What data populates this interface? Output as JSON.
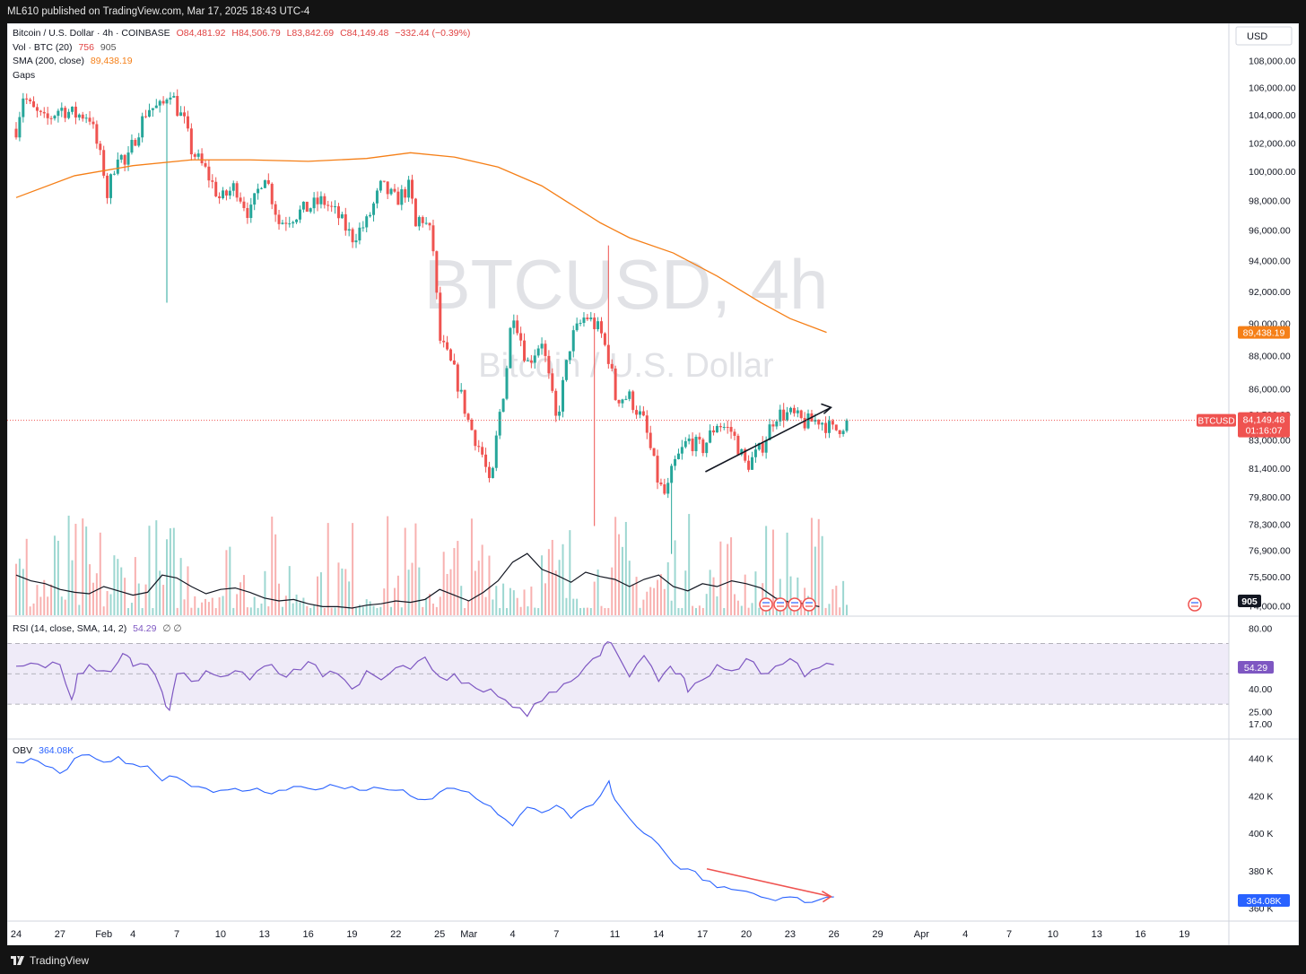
{
  "header": {
    "published": "ML610 published on TradingView.com, Mar 17, 2025 18:43 UTC-4"
  },
  "footer": {
    "brand": "TradingView"
  },
  "legend": {
    "title": "Bitcoin / U.S. Dollar · 4h · COINBASE",
    "o": "O84,481.92",
    "h": "H84,506.79",
    "l": "L83,842.69",
    "c": "C84,149.48",
    "chg": "−332.44 (−0.39%)",
    "vol_label": "Vol · BTC (20)",
    "vol_a": "756",
    "vol_b": "905",
    "sma_label": "SMA (200, close)",
    "sma_val": "89,438.19",
    "gaps": "Gaps",
    "rsi_label": "RSI (14, close, SMA, 14, 2)",
    "rsi_val": "54.29",
    "rsi_extra": "∅ ∅",
    "obv_label": "OBV",
    "obv_val": "364.08K"
  },
  "watermark": {
    "symbol": "BTCUSD, 4h",
    "name": "Bitcoin / U.S. Dollar"
  },
  "colors": {
    "up": "#26a69a",
    "down": "#ef5350",
    "sma": "#f57f17",
    "rsi": "#7e57c2",
    "obv": "#2962ff",
    "bg": "#131313"
  },
  "chart_data": [
    {
      "type": "candlestick",
      "title": "Bitcoin / U.S. Dollar · 4h · COINBASE",
      "currency": "USD",
      "price_ticks": [
        "108,000.00",
        "106,000.00",
        "104,000.00",
        "102,000.00",
        "100,000.00",
        "98,000.00",
        "96,000.00",
        "94,000.00",
        "92,000.00",
        "90,000.00",
        "88,000.00",
        "86,000.00",
        "84,500.00",
        "83,000.00",
        "81,400.00",
        "79,800.00",
        "78,300.00",
        "76,900.00",
        "75,500.00",
        "74,000.00"
      ],
      "y_range": [
        74000,
        108000
      ],
      "scale": "log",
      "anchor_path": {
        "x": [
          0,
          0.5,
          1,
          2,
          3,
          4,
          5,
          6,
          6.2,
          7,
          7.5,
          8,
          9,
          10,
          10.5,
          11,
          11.5,
          12,
          13,
          14,
          15,
          16,
          17,
          18,
          19,
          20,
          21,
          22,
          23,
          24,
          25,
          26,
          27,
          27.3,
          27.7,
          28,
          28.5,
          29,
          30,
          31,
          32,
          32.5,
          33,
          33.5,
          34,
          35,
          36,
          37,
          38,
          39,
          40,
          40.7,
          41,
          42,
          43,
          44,
          44.5,
          45,
          46,
          47,
          48,
          49,
          50,
          51,
          52,
          53,
          54,
          55,
          56,
          57
        ],
        "y": [
          103000,
          105500,
          104500,
          103500,
          104500,
          104000,
          104000,
          100000,
          98200,
          101500,
          100200,
          102000,
          104500,
          104500,
          106000,
          104500,
          103500,
          101500,
          100000,
          98000,
          99000,
          97000,
          100000,
          96500,
          97000,
          97500,
          98000,
          97000,
          95500,
          96500,
          99000,
          98000,
          99000,
          96000,
          97000,
          96500,
          95500,
          89000,
          87000,
          84000,
          82000,
          80000,
          84000,
          86500,
          91000,
          87500,
          89000,
          84000,
          89000,
          90500,
          89500,
          87500,
          85500,
          85500,
          84000,
          80500,
          79800,
          81500,
          83000,
          82500,
          84000,
          83500,
          81500,
          82500,
          84500,
          84500,
          84000,
          84200,
          83500,
          84150
        ]
      },
      "extremes": {
        "high_x": 6.6,
        "high": 106800,
        "low_x": 44.8,
        "low": 76700,
        "pre_low_x": 39.5,
        "pre_low": 78200,
        "feb3_low_x": 10.4,
        "feb3_low": 91300,
        "mar2_high_x": 40.6,
        "mar2_high": 95000
      },
      "last_price": "84,149.48",
      "last_label": "BTCUSD",
      "countdown": "01:16:07",
      "sma_200": {
        "x": [
          0,
          4,
          8,
          12,
          16,
          20,
          24,
          27,
          30,
          33,
          36,
          40,
          42,
          45,
          48,
          51,
          53,
          55.5
        ],
        "y": [
          98200,
          99700,
          100400,
          100800,
          100800,
          100700,
          100900,
          101300,
          101000,
          100300,
          99000,
          96500,
          95500,
          94500,
          93000,
          91300,
          90300,
          89438
        ]
      },
      "sma_value": "89,438.19",
      "trendline": {
        "start": [
          47.2,
          81200
        ],
        "end": [
          55.8,
          84900
        ]
      }
    },
    {
      "type": "bar",
      "name": "Vol · BTC (20)",
      "volume_ticks": [
        "905"
      ],
      "current_volume": "905",
      "volume_ma": {
        "x": [
          0,
          1,
          2,
          3,
          4,
          5,
          6,
          7,
          8,
          9,
          10,
          11,
          12,
          13,
          14,
          15,
          16,
          17,
          18,
          19,
          20,
          21,
          22,
          23,
          24,
          25,
          26,
          27,
          28,
          29,
          30,
          31,
          32,
          33,
          34,
          35,
          36,
          37,
          38,
          39,
          40,
          41,
          42,
          43,
          44,
          45,
          46,
          47,
          48,
          49,
          50,
          51,
          52,
          53,
          54,
          55
        ],
        "y": [
          0.28,
          0.24,
          0.22,
          0.18,
          0.16,
          0.15,
          0.2,
          0.17,
          0.14,
          0.16,
          0.28,
          0.26,
          0.2,
          0.15,
          0.18,
          0.19,
          0.16,
          0.12,
          0.1,
          0.11,
          0.08,
          0.06,
          0.06,
          0.05,
          0.07,
          0.08,
          0.1,
          0.09,
          0.11,
          0.18,
          0.14,
          0.1,
          0.16,
          0.24,
          0.37,
          0.43,
          0.32,
          0.28,
          0.23,
          0.3,
          0.27,
          0.25,
          0.2,
          0.25,
          0.28,
          0.2,
          0.17,
          0.22,
          0.2,
          0.24,
          0.22,
          0.19,
          0.12,
          0.09,
          0.08,
          0.06
        ]
      }
    },
    {
      "type": "line",
      "name": "RSI (14, close, SMA, 14, 2)",
      "y_ticks": [
        "80.00",
        "40.00",
        "25.00",
        "17.00"
      ],
      "y_range": [
        10,
        85
      ],
      "bands": [
        70,
        30
      ],
      "mid": 50,
      "value": "54.29",
      "x": [
        0,
        1,
        2,
        3,
        3.8,
        4.2,
        5,
        6,
        7,
        7.6,
        8,
        9,
        10,
        10.5,
        11,
        12,
        13,
        14,
        15,
        16,
        17,
        18,
        19,
        20,
        21,
        22,
        23,
        24,
        25,
        26,
        27,
        28,
        29,
        30,
        31,
        32,
        33,
        34,
        35,
        36,
        37,
        38,
        39,
        40,
        40.5,
        41,
        42,
        43,
        44,
        44.8,
        45.5,
        46,
        47,
        48,
        49,
        50,
        51,
        52,
        53,
        54,
        55,
        56
      ],
      "y": [
        55,
        57,
        54,
        56,
        33,
        50,
        56,
        52,
        58,
        62,
        55,
        56,
        38,
        26,
        50,
        45,
        52,
        48,
        52,
        46,
        55,
        50,
        53,
        58,
        48,
        50,
        40,
        52,
        46,
        54,
        53,
        61,
        48,
        50,
        44,
        38,
        35,
        28,
        22,
        32,
        38,
        45,
        55,
        62,
        71,
        66,
        48,
        62,
        45,
        55,
        50,
        38,
        46,
        56,
        52,
        60,
        50,
        55,
        60,
        48,
        54,
        56
      ]
    },
    {
      "type": "line",
      "name": "OBV",
      "y_ticks": [
        "440 K",
        "420 K",
        "400 K",
        "380 K",
        "364.08K",
        "360 K"
      ],
      "y_range": [
        355000,
        448000
      ],
      "value": "364.08K",
      "x": [
        0,
        1,
        2,
        3,
        4,
        5,
        6,
        7,
        8,
        9,
        10,
        11,
        12,
        13,
        14,
        15,
        16,
        17,
        18,
        19,
        20,
        21,
        22,
        23,
        24,
        25,
        26,
        27,
        28,
        29,
        30,
        31,
        32,
        33,
        34,
        35,
        36,
        37,
        38,
        39,
        40,
        40.6,
        41,
        42,
        43,
        44,
        45,
        46,
        47,
        48,
        49,
        50,
        51,
        52,
        53,
        54,
        55,
        56
      ],
      "y": [
        438000,
        440000,
        436000,
        432000,
        440000,
        442000,
        438000,
        441000,
        437000,
        436000,
        428000,
        430000,
        425000,
        424000,
        423000,
        424000,
        423000,
        422000,
        423000,
        425000,
        424000,
        424000,
        425000,
        425000,
        423000,
        424000,
        423000,
        420000,
        418000,
        422000,
        424000,
        422000,
        416000,
        410000,
        404000,
        414000,
        411000,
        415000,
        408000,
        414000,
        420000,
        428000,
        418000,
        408000,
        400000,
        394000,
        384000,
        381000,
        375000,
        371000,
        370000,
        369000,
        366000,
        364000,
        366000,
        363000,
        364500,
        366000
      ],
      "trendline": {
        "start": [
          47.3,
          381000
        ],
        "end": [
          55.8,
          366200
        ]
      }
    }
  ],
  "x_axis": {
    "ticks": [
      "24",
      "27",
      "Feb",
      "4",
      "7",
      "10",
      "13",
      "16",
      "19",
      "22",
      "25",
      "Mar",
      "4",
      "7",
      "11",
      "14",
      "17",
      "20",
      "23",
      "26",
      "29",
      "Apr",
      "4",
      "7",
      "10",
      "13",
      "16",
      "19"
    ],
    "tick_x": [
      0,
      3,
      6,
      8,
      11,
      14,
      17,
      20,
      23,
      26,
      29,
      31,
      34,
      37,
      41,
      44,
      47,
      50,
      53,
      56,
      59,
      62,
      65,
      68,
      71,
      74,
      77,
      80
    ]
  }
}
